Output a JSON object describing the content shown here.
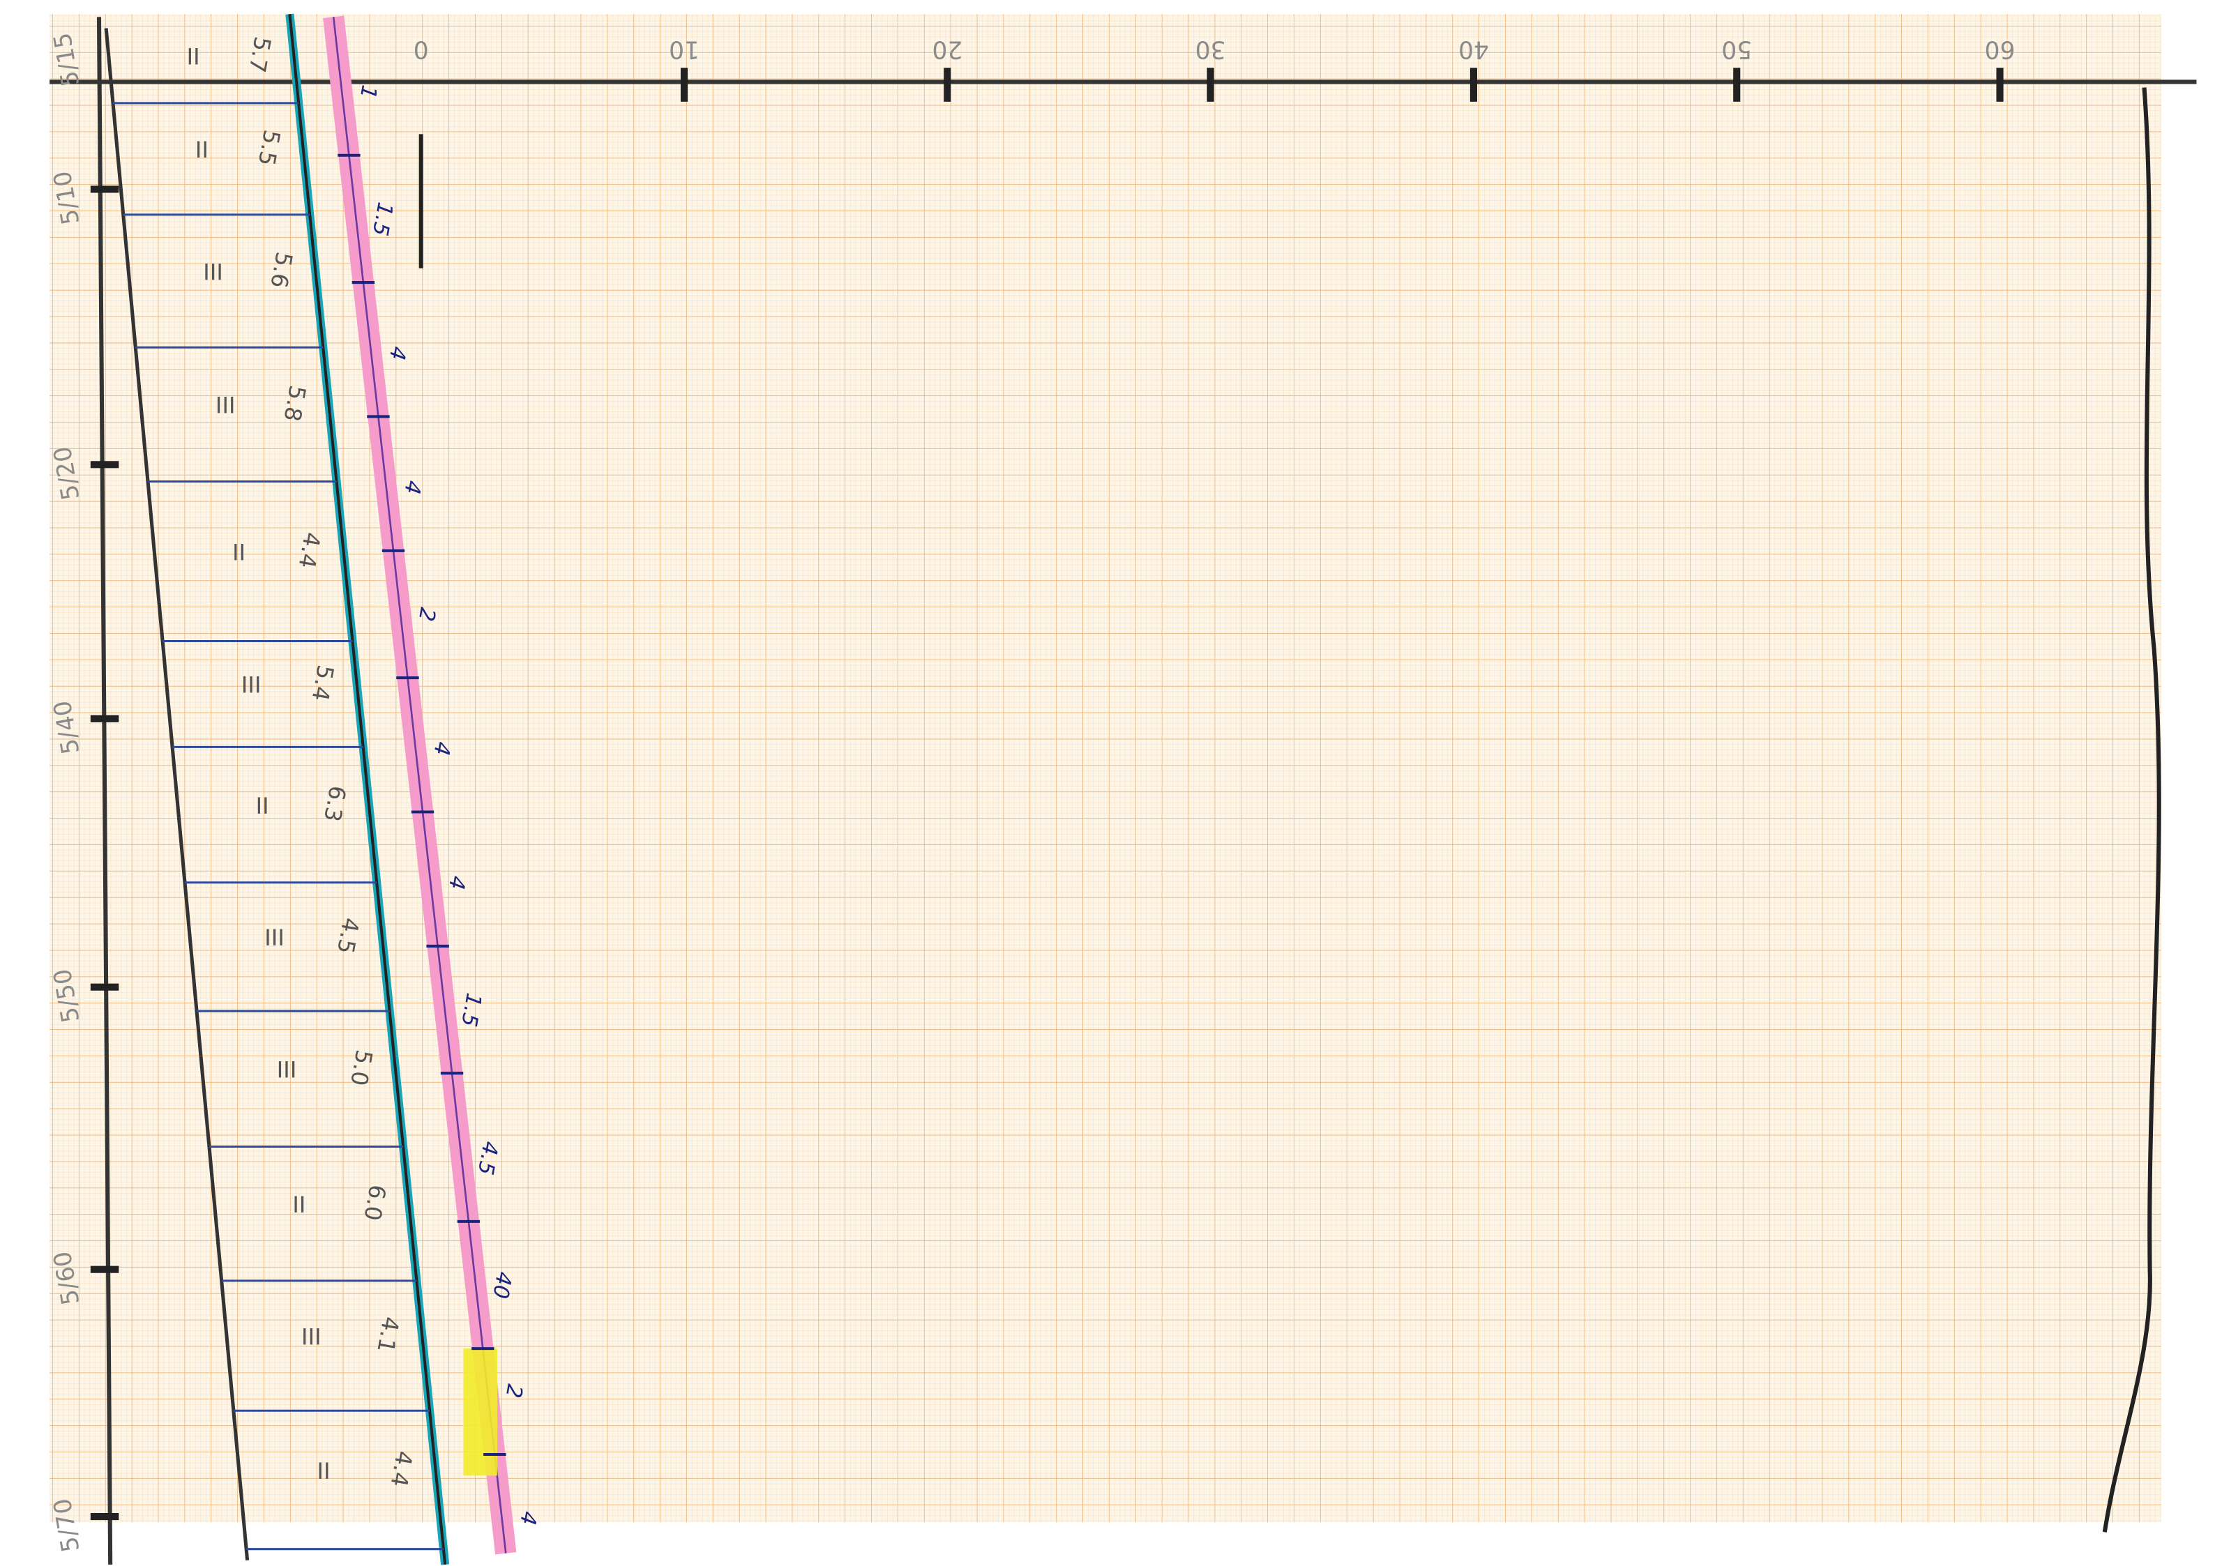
{
  "top_axis": {
    "labels": [
      "0",
      "10",
      "20",
      "30",
      "40",
      "50",
      "60"
    ]
  },
  "left_axis": {
    "labels": [
      "5/15",
      "5/10",
      "5/20",
      "5/40",
      "5/50",
      "5/60",
      "5/70"
    ]
  },
  "rows": [
    {
      "class": "II",
      "value": "5.7"
    },
    {
      "class": "II",
      "value": "5.5"
    },
    {
      "class": "III",
      "value": "5.6"
    },
    {
      "class": "III",
      "value": "5.8"
    },
    {
      "class": "II",
      "value": "4.4"
    },
    {
      "class": "III",
      "value": "5.4"
    },
    {
      "class": "II",
      "value": "6.3"
    },
    {
      "class": "III",
      "value": "4.5"
    },
    {
      "class": "III",
      "value": "5.0"
    },
    {
      "class": "II",
      "value": "6.0"
    },
    {
      "class": "III",
      "value": "4.1"
    },
    {
      "class": "II",
      "value": "4.4"
    }
  ],
  "pink_scale": {
    "labels": [
      "1",
      "1.5",
      "4",
      "4",
      "2",
      "4",
      "4",
      "1.5",
      "4.5",
      "40",
      "2",
      "4"
    ]
  }
}
